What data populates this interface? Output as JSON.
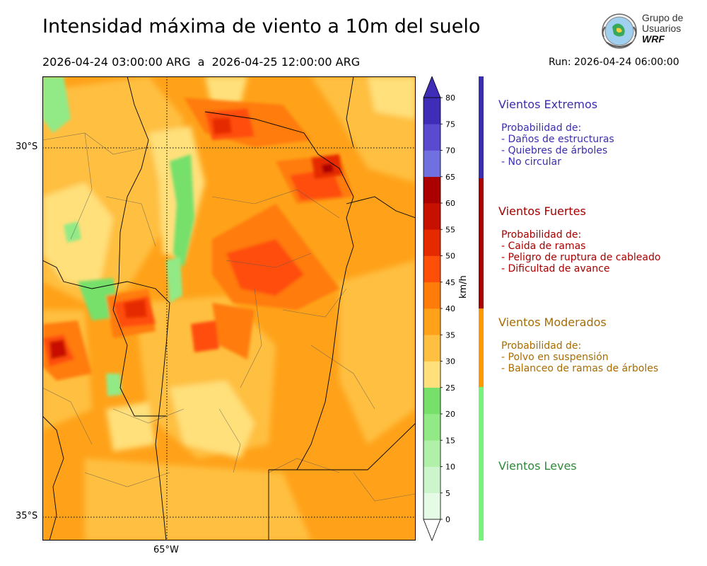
{
  "header": {
    "title": "Intensidad máxima de viento a 10m del suelo",
    "period": "2026-04-24 03:00:00 ARG  a  2026-04-25 12:00:00 ARG",
    "run": "Run: 2026-04-24 06:00:00"
  },
  "logo": {
    "line1": "Grupo de",
    "line2": "Usuarios",
    "line3": "WRF"
  },
  "map": {
    "lat_labels": [
      "30°S",
      "35°S"
    ],
    "lon_labels": [
      "65°W"
    ],
    "gridlines": "dotted"
  },
  "colorbar": {
    "unit": "km/h",
    "ticks": [
      "0",
      "5",
      "10",
      "15",
      "20",
      "25",
      "30",
      "35",
      "40",
      "45",
      "50",
      "55",
      "60",
      "65",
      "70",
      "75",
      "80"
    ],
    "colors": [
      "#e6fbe6",
      "#ccf5cc",
      "#b0f0a8",
      "#92ea86",
      "#76e06a",
      "#ffe07a",
      "#ffbf40",
      "#ffa21a",
      "#ff7c0a",
      "#ff4e08",
      "#e62a00",
      "#c81000",
      "#aa0000",
      "#7070e0",
      "#5a4ad0",
      "#3f2db8"
    ],
    "top_color": "#3f2db8",
    "bottom_color": "#ffffff"
  },
  "legend": [
    {
      "title": "Vientos Extremos",
      "color": "#3a2db0",
      "bar_color": "#3a2db0",
      "sub": [
        "Probabilidad de:",
        "- Daños de estructuras",
        "- Quiebres de árboles",
        "- No circular"
      ]
    },
    {
      "title": "Vientos Fuertes",
      "color": "#a80000",
      "bar_color": "#a80000",
      "sub": [
        "Probabilidad de:",
        "- Caida de ramas",
        "- Peligro de ruptura de cableado",
        "- Dificultad de avance"
      ]
    },
    {
      "title": "Vientos Moderados",
      "color": "#a86c00",
      "bar_color": "#ff9900",
      "sub": [
        "Probabilidad de:",
        "- Polvo en suspensión",
        "- Balanceo de ramas de árboles"
      ]
    },
    {
      "title": "Vientos Leves",
      "color": "#2e8b3a",
      "bar_color": "#77f27a",
      "sub": []
    }
  ]
}
